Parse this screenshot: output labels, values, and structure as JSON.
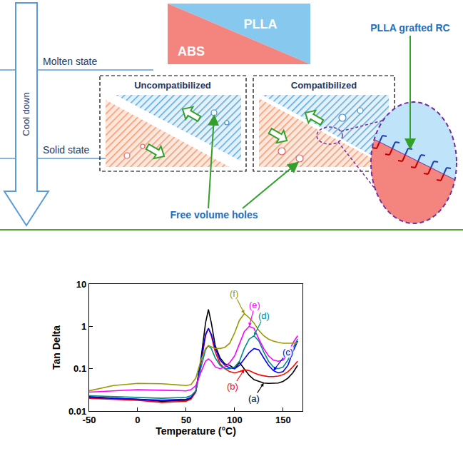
{
  "diagram": {
    "cooling": {
      "arrow_label": "Cool down",
      "states": [
        "Molten state",
        "Solid state"
      ]
    },
    "blend": {
      "labels": [
        "PLLA",
        "ABS"
      ]
    },
    "panels": [
      "Uncompatibilized",
      "Compatibilized"
    ],
    "callouts": {
      "grafted": "PLLA grafted RC",
      "holes": "Free volume holes"
    }
  },
  "chart_data": {
    "type": "line",
    "x_label": "Temperature (°C)",
    "y_label": "Tan Delta",
    "log": "y",
    "grid": false,
    "xlim": [
      -50,
      170
    ],
    "xticks": [
      -50,
      0,
      50,
      100,
      150
    ],
    "ylim": [
      0.01,
      10
    ],
    "yticks": [
      0.01,
      0.1,
      1,
      10
    ],
    "x": [
      -50,
      -25,
      0,
      25,
      50,
      55,
      60,
      65,
      70,
      73,
      76,
      80,
      85,
      90,
      95,
      100,
      105,
      110,
      115,
      120,
      125,
      130,
      135,
      140,
      145,
      150,
      155,
      160,
      165
    ],
    "series": [
      {
        "name": "(a)",
        "color": "#000000",
        "values": [
          0.022,
          0.02,
          0.019,
          0.017,
          0.018,
          0.02,
          0.03,
          0.15,
          1.2,
          2.5,
          1.2,
          0.35,
          0.18,
          0.13,
          0.12,
          0.1,
          0.14,
          0.1,
          0.07,
          0.055,
          0.05,
          0.046,
          0.045,
          0.045,
          0.046,
          0.05,
          0.06,
          0.08,
          0.12
        ]
      },
      {
        "name": "(b)",
        "color": "#ff0000",
        "values": [
          0.02,
          0.019,
          0.018,
          0.016,
          0.017,
          0.019,
          0.028,
          0.12,
          0.6,
          0.9,
          0.6,
          0.25,
          0.13,
          0.1,
          0.085,
          0.08,
          0.085,
          0.095,
          0.09,
          0.08,
          0.072,
          0.068,
          0.065,
          0.065,
          0.067,
          0.072,
          0.085,
          0.11,
          0.15
        ]
      },
      {
        "name": "(c)",
        "color": "#0000ff",
        "values": [
          0.021,
          0.02,
          0.019,
          0.018,
          0.019,
          0.021,
          0.03,
          0.13,
          0.65,
          0.9,
          0.65,
          0.3,
          0.16,
          0.12,
          0.105,
          0.1,
          0.12,
          0.17,
          0.24,
          0.3,
          0.28,
          0.18,
          0.12,
          0.09,
          0.08,
          0.085,
          0.12,
          0.25,
          0.45
        ]
      },
      {
        "name": "(d)",
        "color": "#008b8b",
        "values": [
          0.023,
          0.022,
          0.021,
          0.02,
          0.021,
          0.023,
          0.03,
          0.1,
          0.28,
          0.35,
          0.3,
          0.18,
          0.12,
          0.1,
          0.1,
          0.11,
          0.15,
          0.3,
          0.5,
          0.6,
          0.45,
          0.25,
          0.15,
          0.11,
          0.1,
          0.11,
          0.16,
          0.3,
          0.5
        ]
      },
      {
        "name": "(e)",
        "color": "#ff00ff",
        "values": [
          0.028,
          0.03,
          0.032,
          0.031,
          0.03,
          0.032,
          0.04,
          0.08,
          0.15,
          0.17,
          0.15,
          0.11,
          0.1,
          0.11,
          0.14,
          0.2,
          0.4,
          0.75,
          1.0,
          0.9,
          0.5,
          0.3,
          0.2,
          0.16,
          0.15,
          0.16,
          0.22,
          0.4,
          0.6
        ]
      },
      {
        "name": "(f)",
        "color": "#999900",
        "values": [
          0.03,
          0.04,
          0.045,
          0.044,
          0.04,
          0.042,
          0.06,
          0.15,
          0.3,
          0.35,
          0.33,
          0.3,
          0.3,
          0.32,
          0.4,
          0.7,
          1.4,
          2.0,
          1.6,
          1.2,
          0.8,
          0.6,
          0.5,
          0.45,
          0.42,
          0.4,
          0.4,
          0.4,
          0.4
        ]
      }
    ]
  }
}
